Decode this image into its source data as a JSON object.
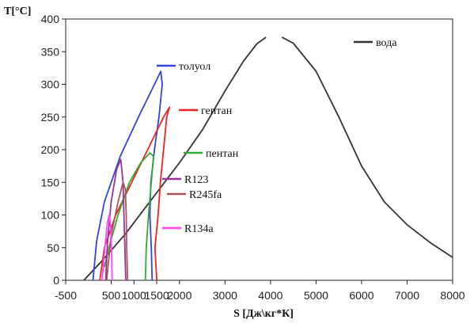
{
  "chart_data": {
    "type": "line",
    "xlabel": "S [Дж\\кг*К]",
    "ylabel": "T[°C]",
    "xlim": [
      -500,
      8000
    ],
    "ylim": [
      0,
      400
    ],
    "x_ticks": [
      "-500",
      "500",
      "1000",
      "1500",
      "2000",
      "3000",
      "4000",
      "5000",
      "6000",
      "7000",
      "8000"
    ],
    "y_ticks": [
      "0",
      "50",
      "100",
      "150",
      "200",
      "250",
      "300",
      "350",
      "400"
    ],
    "grid": false,
    "legend_placement": "inline",
    "series": [
      {
        "name": "вода",
        "color": "#333333",
        "points": [
          [
            -100,
            0
          ],
          [
            300,
            30
          ],
          [
            800,
            70
          ],
          [
            1400,
            125
          ],
          [
            2000,
            180
          ],
          [
            2500,
            230
          ],
          [
            3000,
            290
          ],
          [
            3400,
            335
          ],
          [
            3700,
            362
          ],
          [
            3900,
            372
          ],
          [
            null,
            null
          ],
          [
            4250,
            372
          ],
          [
            4500,
            363
          ],
          [
            5000,
            320
          ],
          [
            5500,
            250
          ],
          [
            6000,
            175
          ],
          [
            6500,
            120
          ],
          [
            7000,
            85
          ],
          [
            7500,
            58
          ],
          [
            8000,
            35
          ]
        ]
      },
      {
        "name": "толуол",
        "color": "#3344dd",
        "points": [
          [
            1400,
            0
          ],
          [
            1380,
            50
          ],
          [
            1350,
            100
          ],
          [
            1370,
            150
          ],
          [
            1450,
            200
          ],
          [
            1550,
            250
          ],
          [
            1620,
            300
          ],
          [
            1590,
            320
          ],
          [
            1450,
            300
          ],
          [
            1100,
            250
          ],
          [
            700,
            190
          ],
          [
            350,
            120
          ],
          [
            180,
            60
          ],
          [
            100,
            0
          ]
        ]
      },
      {
        "name": "гептан",
        "color": "#ee2222",
        "points": [
          [
            1500,
            0
          ],
          [
            1460,
            50
          ],
          [
            1530,
            100
          ],
          [
            1580,
            150
          ],
          [
            1650,
            200
          ],
          [
            1720,
            250
          ],
          [
            1780,
            265
          ],
          [
            1650,
            250
          ],
          [
            1300,
            200
          ],
          [
            950,
            150
          ],
          [
            600,
            100
          ],
          [
            350,
            50
          ],
          [
            250,
            0
          ]
        ]
      },
      {
        "name": "пентан",
        "color": "#33aa33",
        "points": [
          [
            1250,
            0
          ],
          [
            1270,
            50
          ],
          [
            1320,
            100
          ],
          [
            1380,
            150
          ],
          [
            1430,
            190
          ],
          [
            1350,
            195
          ],
          [
            1150,
            180
          ],
          [
            900,
            150
          ],
          [
            650,
            100
          ],
          [
            450,
            50
          ],
          [
            350,
            20
          ]
        ]
      },
      {
        "name": "R123",
        "color": "#993399",
        "points": [
          [
            820,
            0
          ],
          [
            800,
            50
          ],
          [
            780,
            100
          ],
          [
            760,
            150
          ],
          [
            710,
            185
          ],
          [
            620,
            170
          ],
          [
            500,
            120
          ],
          [
            420,
            60
          ],
          [
            380,
            0
          ]
        ]
      },
      {
        "name": "R245fa",
        "color": "#aa5555",
        "points": [
          [
            860,
            0
          ],
          [
            840,
            50
          ],
          [
            830,
            100
          ],
          [
            810,
            140
          ],
          [
            760,
            150
          ],
          [
            650,
            120
          ],
          [
            500,
            70
          ],
          [
            400,
            0
          ]
        ]
      },
      {
        "name": "R134a",
        "color": "#ff44ff",
        "points": [
          [
            520,
            0
          ],
          [
            510,
            40
          ],
          [
            490,
            80
          ],
          [
            460,
            100
          ],
          [
            420,
            90
          ],
          [
            360,
            50
          ],
          [
            300,
            0
          ]
        ]
      }
    ]
  }
}
